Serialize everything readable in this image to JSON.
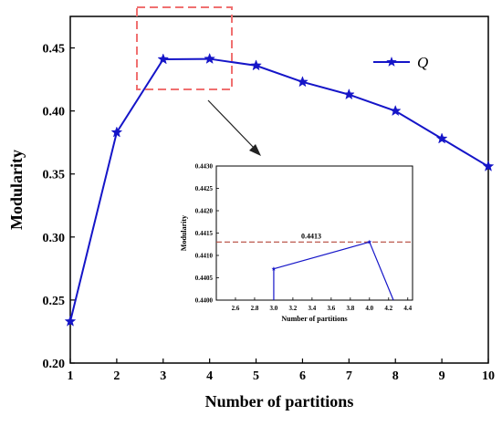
{
  "chart_data": [
    {
      "type": "line",
      "x": [
        1,
        2,
        3,
        4,
        5,
        6,
        7,
        8,
        9,
        10
      ],
      "series": [
        {
          "name": "Q",
          "values": [
            0.233,
            0.383,
            0.441,
            0.4413,
            0.436,
            0.423,
            0.413,
            0.4,
            0.378,
            0.356
          ]
        }
      ],
      "xlabel": "Number of partitions",
      "ylabel": "Modularity",
      "xlim": [
        1,
        10
      ],
      "ylim": [
        0.2,
        0.475
      ],
      "x_ticks": [
        "1",
        "2",
        "3",
        "4",
        "5",
        "6",
        "7",
        "8",
        "9",
        "10"
      ],
      "y_ticks": [
        "0.20",
        "0.25",
        "0.30",
        "0.35",
        "0.40",
        "0.45"
      ],
      "legend": "top-right",
      "grid": false,
      "colors": {
        "series": "#1515c8",
        "highlight_box": "#f07070",
        "reference_line": "#b5473a"
      }
    },
    {
      "type": "line",
      "x": [
        3.0,
        3.0,
        4.0,
        4.25
      ],
      "series": [
        {
          "values": [
            0.44,
            0.4407,
            0.4413,
            0.44
          ]
        }
      ],
      "xlabel": "Number of partitions",
      "ylabel": "Modularity",
      "xlim": [
        2.4,
        4.45
      ],
      "ylim": [
        0.44,
        0.443
      ],
      "x_ticks": [
        "2.6",
        "2.8",
        "3.0",
        "3.2",
        "3.4",
        "3.6",
        "3.8",
        "4.0",
        "4.2",
        "4.4"
      ],
      "y_ticks": [
        "0.4400",
        "0.4405",
        "0.4410",
        "0.4415",
        "0.4420",
        "0.4425",
        "0.4430"
      ],
      "reference_line": {
        "y": 0.4413,
        "label": "0.4413"
      },
      "grid": false
    }
  ]
}
